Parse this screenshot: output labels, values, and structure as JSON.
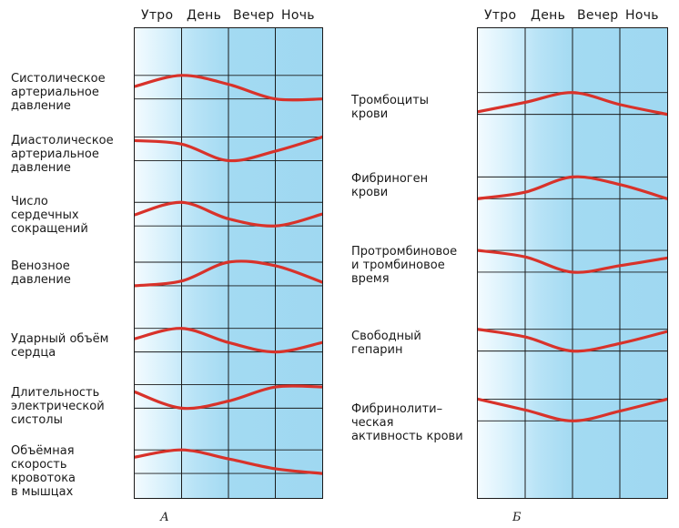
{
  "panels": [
    {
      "id": "a",
      "letter": "А",
      "periods": [
        "Утро",
        "День",
        "Вечер",
        "Ночь"
      ],
      "rows": [
        {
          "label": "Систолическое\nартериальное\nдавление",
          "curve": [
            0.53,
            1.0,
            0.62,
            0.0,
            0.0
          ]
        },
        {
          "label": "Диастолическое\nартериальное\nдавление",
          "curve": [
            0.85,
            0.7,
            0.0,
            0.4,
            1.0
          ]
        },
        {
          "label": "Число\nсердечных\nсокращений",
          "curve": [
            0.47,
            1.0,
            0.3,
            0.0,
            0.5
          ]
        },
        {
          "label": "Венозное\nдавление",
          "curve": [
            0.0,
            0.2,
            1.0,
            0.85,
            0.15
          ]
        },
        {
          "label": "Ударный объём\nсердца",
          "curve": [
            0.56,
            1.0,
            0.4,
            0.0,
            0.4
          ]
        },
        {
          "label": "Длительность\nэлектрической\nсистолы",
          "curve": [
            0.69,
            0.0,
            0.3,
            0.9,
            0.9
          ]
        },
        {
          "label": "Объёмная\nскорость\nкровотока\nв мышцах",
          "curve": [
            0.69,
            1.0,
            0.62,
            0.2,
            0.0
          ]
        }
      ]
    },
    {
      "id": "b",
      "letter": "Б",
      "periods": [
        "Утро",
        "День",
        "Вечер",
        "Ночь"
      ],
      "rows": [
        {
          "label": "Тромбоциты\nкрови",
          "curve": [
            0.12,
            0.55,
            1.0,
            0.45,
            0.0
          ]
        },
        {
          "label": "Фибриноген\nкрови",
          "curve": [
            0.0,
            0.3,
            1.0,
            0.65,
            0.0
          ]
        },
        {
          "label": "Протромбиновое\nи тромбиновое\nвремя",
          "curve": [
            1.0,
            0.7,
            0.0,
            0.3,
            0.65
          ]
        },
        {
          "label": "Свободный\nгепарин",
          "curve": [
            1.0,
            0.65,
            0.0,
            0.35,
            0.9
          ]
        },
        {
          "label": "Фибринолити–\nческая\nактивность крови",
          "curve": [
            1.0,
            0.5,
            0.0,
            0.45,
            1.0
          ]
        }
      ]
    }
  ],
  "colors": {
    "curve": "#d8322a",
    "grid": "#1a1a1a",
    "panel_light": "#f3fbff",
    "panel_dark": "#9fd8f1"
  }
}
